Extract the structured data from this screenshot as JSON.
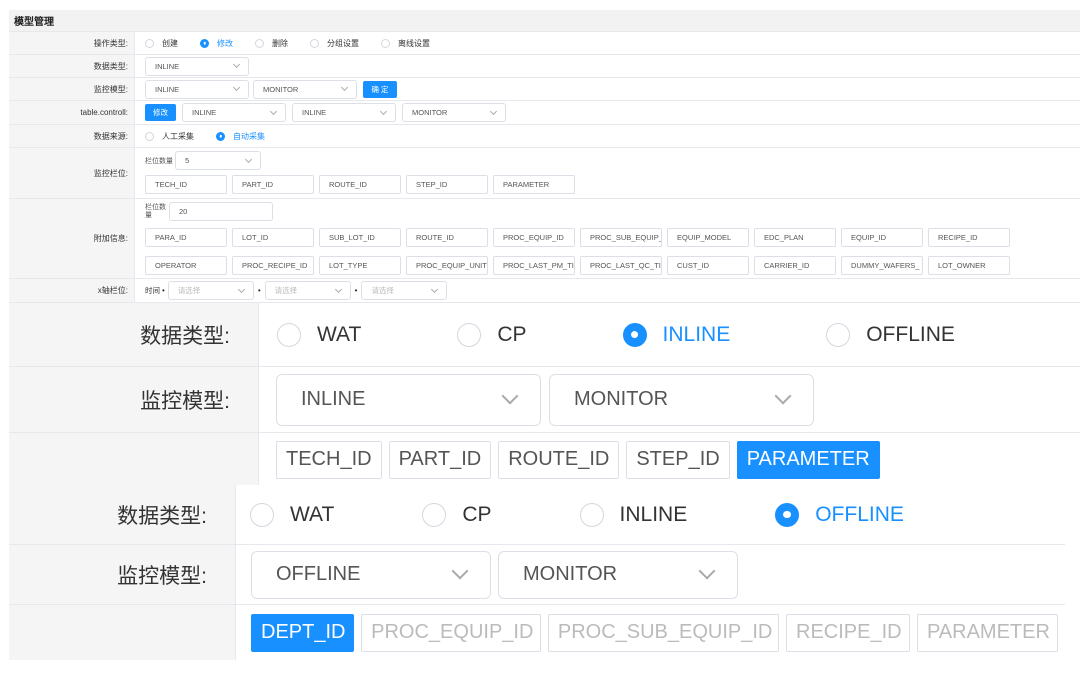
{
  "top": {
    "title": "模型管理",
    "op_type": {
      "label": "操作类型:",
      "options": [
        {
          "label": "创建",
          "on": false
        },
        {
          "label": "修改",
          "on": true
        },
        {
          "label": "删除",
          "on": false
        },
        {
          "label": "分组设置",
          "on": false
        },
        {
          "label": "离线设置",
          "on": false
        }
      ]
    },
    "data_type": {
      "label": "数据类型:",
      "value": "INLINE"
    },
    "monitor_model": {
      "label": "监控模型:",
      "values": [
        "INLINE",
        "MONITOR"
      ],
      "confirm": "确 定"
    },
    "table_control": {
      "label": "table.controll:",
      "button": "修改",
      "values": [
        "INLINE",
        "INLINE",
        "MONITOR"
      ]
    },
    "data_source": {
      "label": "数据来源:",
      "options": [
        {
          "label": "人工采集",
          "on": false
        },
        {
          "label": "自动采集",
          "on": true
        }
      ]
    },
    "monitor_fields": {
      "label": "监控栏位:",
      "count_label": "栏位数量",
      "count": "5",
      "fields": [
        "TECH_ID",
        "PART_ID",
        "ROUTE_ID",
        "STEP_ID",
        "PARAMETER"
      ]
    },
    "extra_info": {
      "label": "附加信息:",
      "count_label": "栏位数量",
      "count": "20",
      "fields": [
        "PARA_ID",
        "LOT_ID",
        "SUB_LOT_ID",
        "ROUTE_ID",
        "PROC_EQUIP_ID",
        "PROC_SUB_EQUIP_",
        "EQUIP_MODEL",
        "EDC_PLAN",
        "EQUIP_ID",
        "RECIPE_ID",
        "OPERATOR",
        "PROC_RECIPE_ID",
        "LOT_TYPE",
        "PROC_EQUIP_UNIT",
        "PROC_LAST_PM_TI",
        "PROC_LAST_QC_TII",
        "CUST_ID",
        "CARRIER_ID",
        "DUMMY_WAFERS_",
        "LOT_OWNER"
      ]
    },
    "x_axis": {
      "label": "x轴栏位:",
      "time_label": "时间",
      "separator": "•",
      "placeholder": "请选择"
    }
  },
  "inline_panel": {
    "data_type": {
      "label": "数据类型:",
      "options": [
        {
          "label": "WAT",
          "on": false
        },
        {
          "label": "CP",
          "on": false
        },
        {
          "label": "INLINE",
          "on": true
        },
        {
          "label": "OFFLINE",
          "on": false
        }
      ]
    },
    "monitor_model": {
      "label": "监控模型:",
      "values": [
        "INLINE",
        "MONITOR"
      ]
    },
    "fields": [
      {
        "label": "TECH_ID",
        "state": "normal"
      },
      {
        "label": "PART_ID",
        "state": "normal"
      },
      {
        "label": "ROUTE_ID",
        "state": "normal"
      },
      {
        "label": "STEP_ID",
        "state": "normal"
      },
      {
        "label": "PARAMETER",
        "state": "selected"
      }
    ]
  },
  "offline_panel": {
    "data_type": {
      "label": "数据类型:",
      "options": [
        {
          "label": "WAT",
          "on": false
        },
        {
          "label": "CP",
          "on": false
        },
        {
          "label": "INLINE",
          "on": false
        },
        {
          "label": "OFFLINE",
          "on": true
        }
      ]
    },
    "monitor_model": {
      "label": "监控模型:",
      "values": [
        "OFFLINE",
        "MONITOR"
      ]
    },
    "fields": [
      {
        "label": "DEPT_ID",
        "state": "selected"
      },
      {
        "label": "PROC_EQUIP_ID",
        "state": "disabled"
      },
      {
        "label": "PROC_SUB_EQUIP_ID",
        "state": "disabled"
      },
      {
        "label": "RECIPE_ID",
        "state": "disabled"
      },
      {
        "label": "PARAMETER",
        "state": "disabled"
      }
    ]
  },
  "colors": {
    "accent": "#1890ff",
    "label_bg": "#f5f5f5",
    "border": "#e6e8ee"
  }
}
